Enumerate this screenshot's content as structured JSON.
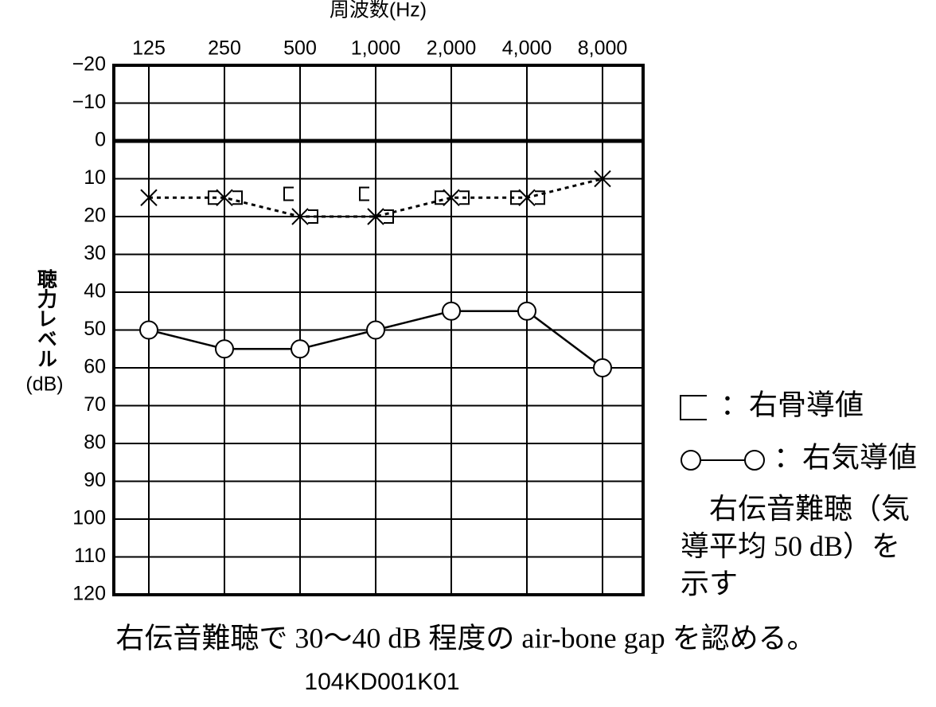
{
  "chart_data": {
    "type": "line",
    "x_label": "周波数(Hz)",
    "y_label": "聴力レベル",
    "y_unit": "(dB)",
    "categories": [
      "125",
      "250",
      "500",
      "1,000",
      "2,000",
      "4,000",
      "8,000"
    ],
    "ylim": [
      -20,
      120
    ],
    "y_inverted": true,
    "yticks": [
      {
        "value": -20,
        "label": "−20"
      },
      {
        "value": -10,
        "label": "−10"
      },
      0,
      10,
      20,
      30,
      40,
      50,
      60,
      70,
      80,
      90,
      100,
      110,
      120
    ],
    "grid": true,
    "series": [
      {
        "marker": "bracket-left",
        "line_style": "none",
        "color": "#000000",
        "values": [
          null,
          15,
          14,
          14,
          15,
          15,
          null
        ]
      },
      {
        "marker": "bracket-right",
        "line_style": "none",
        "color": "#000000",
        "values": [
          null,
          15,
          20,
          20,
          15,
          15,
          null
        ]
      },
      {
        "marker": "x",
        "line_style": "dotted",
        "color": "#000000",
        "values": [
          15,
          15,
          20,
          20,
          15,
          15,
          10
        ]
      },
      {
        "marker": "circle",
        "line_style": "solid",
        "color": "#000000",
        "values": [
          50,
          55,
          55,
          50,
          45,
          45,
          60
        ]
      }
    ],
    "legend": [
      {
        "marker": "bracket-left",
        "text": "：右骨導値"
      },
      {
        "marker": "circle-line",
        "text": "：右気導値"
      }
    ],
    "annotation": "　右伝音難聴（気導平均 50 dB）を示す",
    "caption": "右伝音難聴で 30〜40 dB 程度の air-bone gap を認める。",
    "figure_id": "104KD001K01"
  }
}
